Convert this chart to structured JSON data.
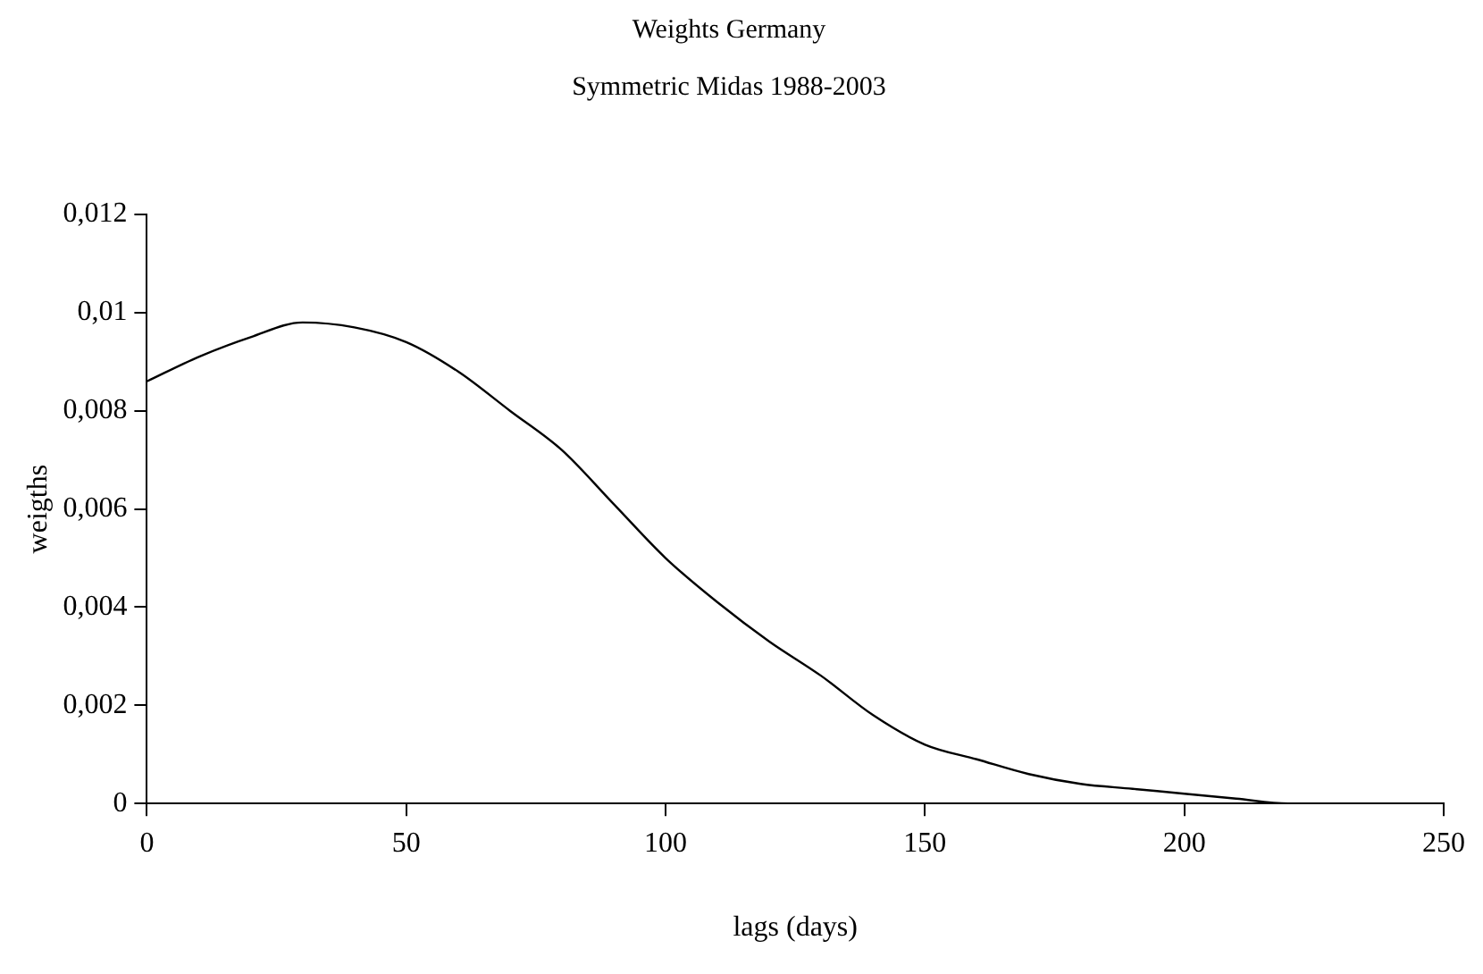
{
  "chart_data": {
    "type": "line",
    "title": "Weights Germany",
    "subtitle": "Symmetric Midas 1988-2003",
    "xlabel": "lags (days)",
    "ylabel": "weigths",
    "x": [
      0,
      10,
      20,
      30,
      40,
      50,
      60,
      70,
      80,
      90,
      100,
      110,
      120,
      130,
      140,
      150,
      160,
      170,
      180,
      190,
      200,
      210,
      220,
      230,
      240,
      250
    ],
    "series": [
      {
        "color": "#000000",
        "values": [
          0.0086,
          0.0091,
          0.0095,
          0.0098,
          0.0097,
          0.0094,
          0.0088,
          0.008,
          0.0072,
          0.0061,
          0.005,
          0.0041,
          0.0033,
          0.0026,
          0.0018,
          0.0012,
          0.0009,
          0.0006,
          0.0004,
          0.0003,
          0.0002,
          0.0001,
          0,
          0,
          0,
          0
        ]
      }
    ],
    "xlim": [
      0,
      250
    ],
    "xticks": [
      0,
      50,
      100,
      150,
      200,
      250
    ],
    "ylim": [
      0,
      0.012
    ],
    "yticks": [
      0,
      {
        "value": 0.002,
        "label": "0,002"
      },
      {
        "value": 0.004,
        "label": "0,004"
      },
      {
        "value": 0.006,
        "label": "0,006"
      },
      {
        "value": 0.008,
        "label": "0,008"
      },
      {
        "value": 0.01,
        "label": "0,01"
      },
      {
        "value": 0.012,
        "label": "0,012"
      }
    ],
    "grid": false,
    "legend": false,
    "marker": "none",
    "line_style": "solid"
  }
}
